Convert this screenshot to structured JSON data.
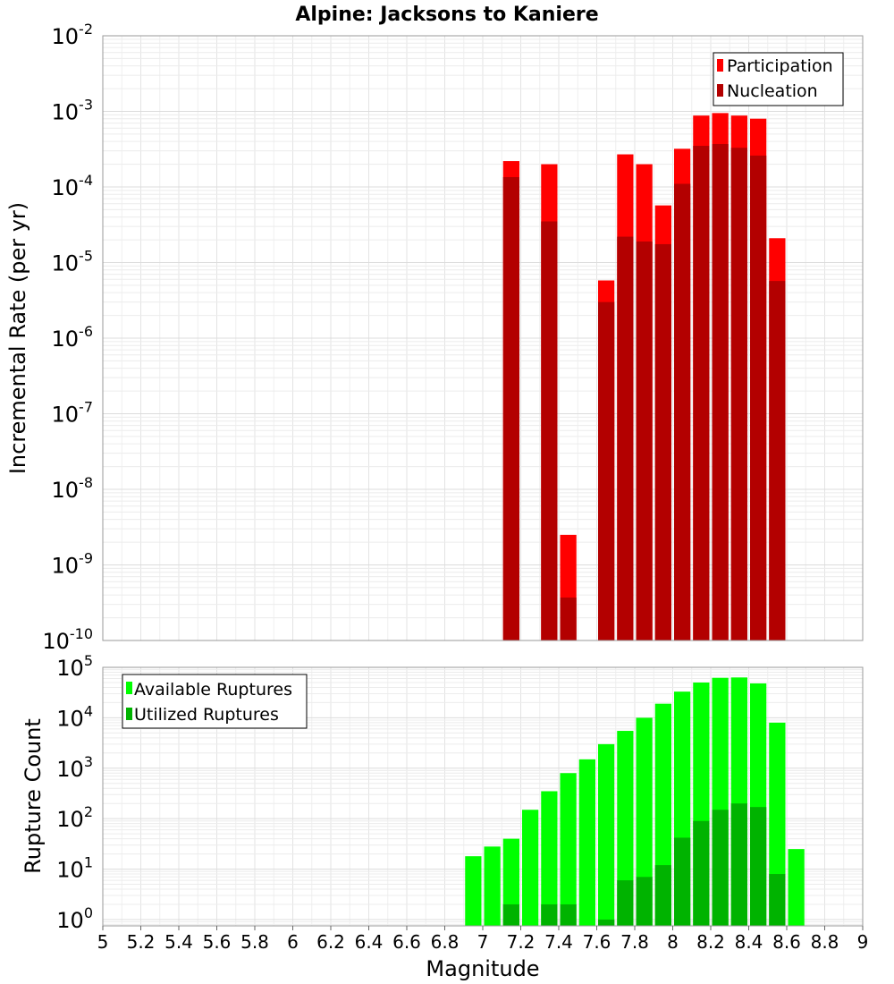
{
  "chart_data": [
    {
      "type": "bar",
      "title": "Alpine: Jacksons to Kaniere",
      "xlabel": "",
      "ylabel": "Incremental Rate (per yr)",
      "yscale": "log",
      "xlim": [
        5,
        9
      ],
      "ylim": [
        1e-10,
        0.01
      ],
      "grid": true,
      "legend_position": "top-right",
      "series": [
        {
          "name": "Participation",
          "color": "#ff0000",
          "x": [
            7.15,
            7.35,
            7.45,
            7.65,
            7.75,
            7.85,
            7.95,
            8.05,
            8.15,
            8.25,
            8.35,
            8.45,
            8.55
          ],
          "values": [
            0.00022,
            0.0002,
            2.5e-09,
            5.8e-06,
            0.00027,
            0.0002,
            5.7e-05,
            0.00032,
            0.00088,
            0.00095,
            0.00088,
            0.0008,
            2.1e-05
          ]
        },
        {
          "name": "Nucleation",
          "color": "#b30000",
          "x": [
            7.15,
            7.35,
            7.45,
            7.65,
            7.75,
            7.85,
            7.95,
            8.05,
            8.15,
            8.25,
            8.35,
            8.45,
            8.55
          ],
          "values": [
            0.000135,
            3.5e-05,
            3.7e-10,
            3e-06,
            2.2e-05,
            1.9e-05,
            1.75e-05,
            0.00011,
            0.00035,
            0.00037,
            0.00033,
            0.00026,
            5.7e-06
          ]
        }
      ]
    },
    {
      "type": "bar",
      "title": "",
      "xlabel": "Magnitude",
      "ylabel": "Rupture Count",
      "yscale": "log",
      "xlim": [
        5,
        9
      ],
      "ylim": [
        0.75,
        100000
      ],
      "grid": true,
      "legend_position": "top-left",
      "x_ticks": [
        "5",
        "5.2",
        "5.4",
        "5.6",
        "5.8",
        "6",
        "6.2",
        "6.4",
        "6.6",
        "6.8",
        "7",
        "7.2",
        "7.4",
        "7.6",
        "7.8",
        "8",
        "8.2",
        "8.4",
        "8.6",
        "8.8",
        "9"
      ],
      "series": [
        {
          "name": "Available Ruptures",
          "color": "#00ff00",
          "x": [
            6.95,
            7.05,
            7.15,
            7.25,
            7.35,
            7.45,
            7.55,
            7.65,
            7.75,
            7.85,
            7.95,
            8.05,
            8.15,
            8.25,
            8.35,
            8.45,
            8.55,
            8.65
          ],
          "values": [
            18,
            28,
            40,
            150,
            350,
            800,
            1500,
            3000,
            5500,
            10000,
            19000,
            33000,
            50000,
            62000,
            63000,
            48000,
            8000,
            25
          ]
        },
        {
          "name": "Utilized Ruptures",
          "color": "#00b300",
          "x": [
            7.15,
            7.35,
            7.45,
            7.65,
            7.75,
            7.85,
            7.95,
            8.05,
            8.15,
            8.25,
            8.35,
            8.45,
            8.55
          ],
          "values": [
            2,
            2,
            2,
            1,
            6,
            7,
            12,
            42,
            90,
            150,
            200,
            170,
            8
          ]
        }
      ]
    }
  ]
}
